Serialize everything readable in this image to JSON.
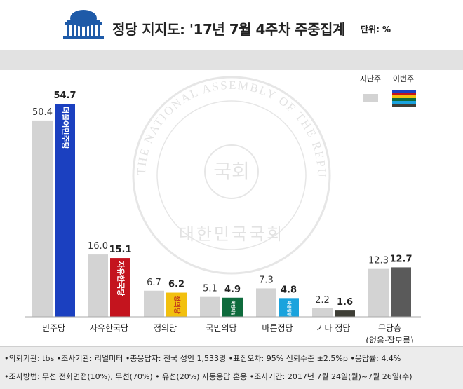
{
  "header": {
    "title": "정당 지지도: '17년 7월 4주차 주중집계",
    "unit": "단위: %"
  },
  "colors": {
    "last_week": "#d3d3d3",
    "this_week_default": "#555555",
    "minjoo": "#1b40c0",
    "jayu": "#c4141e",
    "jeongui": "#f2c00f",
    "gukmin": "#0e6b3c",
    "bareun": "#1aa3dd",
    "etc": "#3e3e36",
    "none": "#5a5a5a"
  },
  "chart_data": {
    "type": "bar",
    "categories": [
      "민주당",
      "자유한국당",
      "정의당",
      "국민의당",
      "바른정당",
      "기타 정당",
      "무당층"
    ],
    "category_sublabels": [
      "",
      "",
      "",
      "",
      "",
      "",
      "(없음·잘모름)"
    ],
    "series": [
      {
        "name": "지난주",
        "values": [
          50.4,
          16.0,
          6.7,
          5.1,
          7.3,
          2.2,
          12.3
        ]
      },
      {
        "name": "이번주",
        "values": [
          54.7,
          15.1,
          6.2,
          4.9,
          4.8,
          1.6,
          12.7
        ]
      }
    ],
    "value_labels": {
      "last_week": [
        "50.4",
        "16.0",
        "6.7",
        "5.1",
        "7.3",
        "2.2",
        "12.3"
      ],
      "this_week": [
        "54.7",
        "15.1",
        "6.2",
        "4.9",
        "4.8",
        "1.6",
        "12.7"
      ]
    },
    "bar_party_text": [
      "더불어민주당",
      "자유한국당",
      "정의당",
      "국민의당",
      "바른정당",
      "",
      ""
    ],
    "ylim": [
      0,
      60
    ],
    "grid": false,
    "legend_position": "top-right"
  },
  "watermark": {
    "ring_text": "THE NATIONAL ASSEMBLY OF THE REPUBLIC OF KOREA",
    "center": "국회",
    "bottom": "대한민국국회"
  },
  "footer": {
    "line1": "•의뢰기관: tbs •조사기관: 리얼미터 •총응답자: 전국 성인 1,533명 •표집오차: 95% 신뢰수준 ±2.5%p •응답률: 4.4%",
    "line2": "•조사방법: 무선 전화면접(10%), 무선(70%) • 유선(20%) 자동응답 혼용 •조사기간: 2017년 7월 24일(월)~7월 26일(수)"
  }
}
